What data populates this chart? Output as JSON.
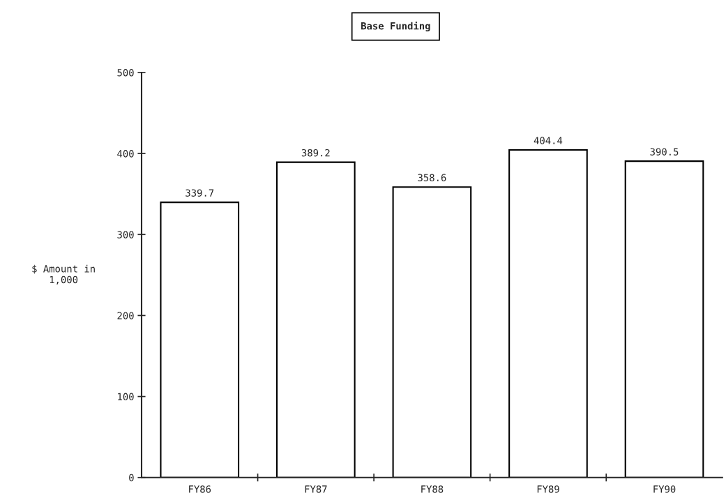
{
  "chart_data": {
    "type": "bar",
    "title": "Base Funding",
    "ylabel": "$ Amount in\n1,000",
    "categories": [
      "FY86",
      "FY87",
      "FY88",
      "FY89",
      "FY90"
    ],
    "values": [
      339.7,
      389.2,
      358.6,
      404.4,
      390.5
    ],
    "color": "#ffffff",
    "ylim": [
      0,
      500
    ],
    "yticks": [
      0,
      100,
      200,
      300,
      400,
      500
    ],
    "data_labels": true,
    "grid": false,
    "legend": false
  }
}
